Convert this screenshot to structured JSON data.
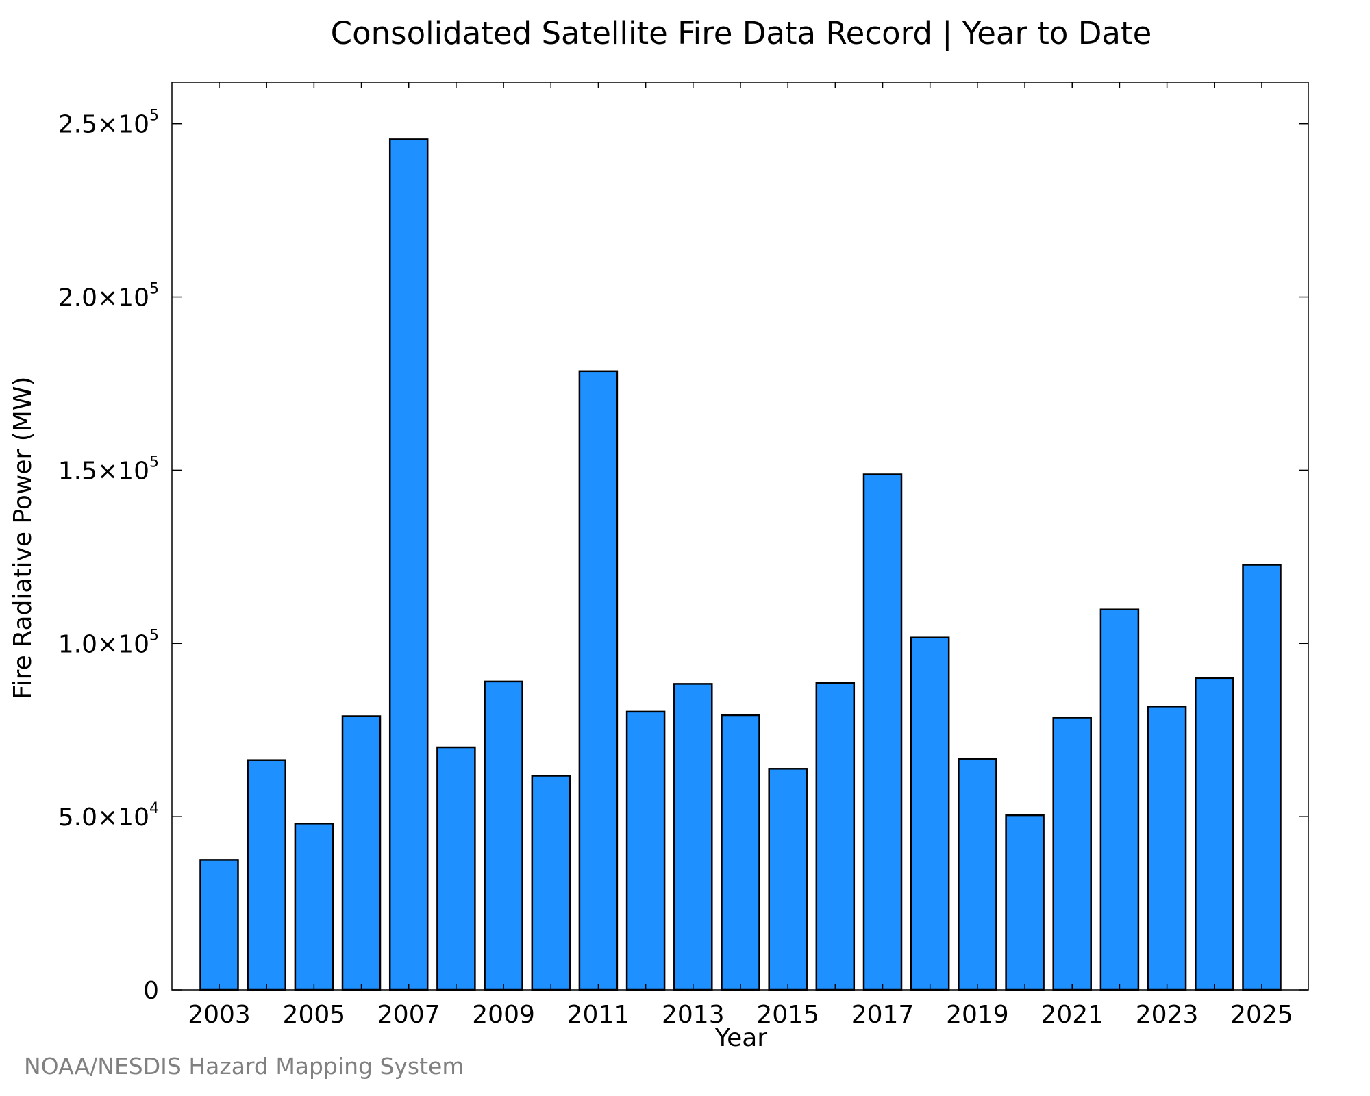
{
  "chart_data": {
    "type": "bar",
    "title": "Consolidated Satellite Fire Data Record | Year to Date",
    "xlabel": "Year",
    "ylabel": "Fire Radiative Power (MW)",
    "categories": [
      "2003",
      "2004",
      "2005",
      "2006",
      "2007",
      "2008",
      "2009",
      "2010",
      "2011",
      "2012",
      "2013",
      "2014",
      "2015",
      "2016",
      "2017",
      "2018",
      "2019",
      "2020",
      "2021",
      "2022",
      "2023",
      "2024",
      "2025"
    ],
    "values": [
      37500,
      66300,
      48000,
      79000,
      245500,
      70000,
      89000,
      61800,
      178600,
      80300,
      88300,
      79300,
      63800,
      88600,
      148800,
      101700,
      66700,
      50400,
      78600,
      109800,
      81800,
      90000,
      122700
    ],
    "ylim": [
      0,
      262000
    ],
    "y_ticks": [
      {
        "value": 0,
        "mantissa": "0",
        "exponent": ""
      },
      {
        "value": 50000,
        "mantissa": "5.0×10",
        "exponent": "4"
      },
      {
        "value": 100000,
        "mantissa": "1.0×10",
        "exponent": "5"
      },
      {
        "value": 150000,
        "mantissa": "1.5×10",
        "exponent": "5"
      },
      {
        "value": 200000,
        "mantissa": "2.0×10",
        "exponent": "5"
      },
      {
        "value": 250000,
        "mantissa": "2.5×10",
        "exponent": "5"
      }
    ],
    "x_tick_labels": [
      "2003",
      "2005",
      "2007",
      "2009",
      "2011",
      "2013",
      "2015",
      "2017",
      "2019",
      "2021",
      "2023",
      "2025"
    ],
    "bar_color": "#1e90ff",
    "grid": false,
    "legend": "none"
  },
  "footer": {
    "source": "NOAA/NESDIS Hazard Mapping System"
  }
}
